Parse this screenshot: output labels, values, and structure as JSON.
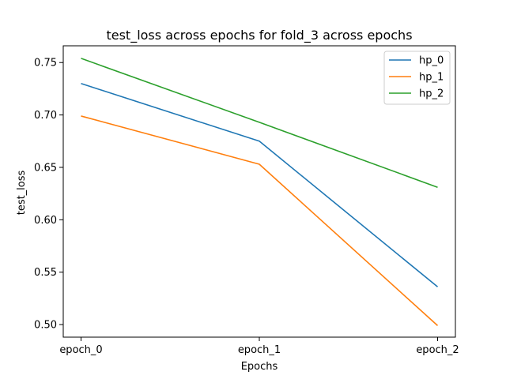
{
  "chart_data": {
    "type": "line",
    "title": "test_loss across epochs for fold_3 across epochs",
    "xlabel": "Epochs",
    "ylabel": "test_loss",
    "categories": [
      "epoch_0",
      "epoch_1",
      "epoch_2"
    ],
    "ylim": [
      0.488,
      0.766
    ],
    "yticks": [
      "0.50",
      "0.55",
      "0.60",
      "0.65",
      "0.70",
      "0.75"
    ],
    "grid": false,
    "legend_position": "top-right",
    "series": [
      {
        "name": "hp_0",
        "color": "#1f77b4",
        "values": [
          0.73,
          0.675,
          0.536
        ]
      },
      {
        "name": "hp_1",
        "color": "#ff7f0e",
        "values": [
          0.699,
          0.653,
          0.499
        ]
      },
      {
        "name": "hp_2",
        "color": "#2ca02c",
        "values": [
          0.754,
          0.693,
          0.631
        ]
      }
    ]
  }
}
